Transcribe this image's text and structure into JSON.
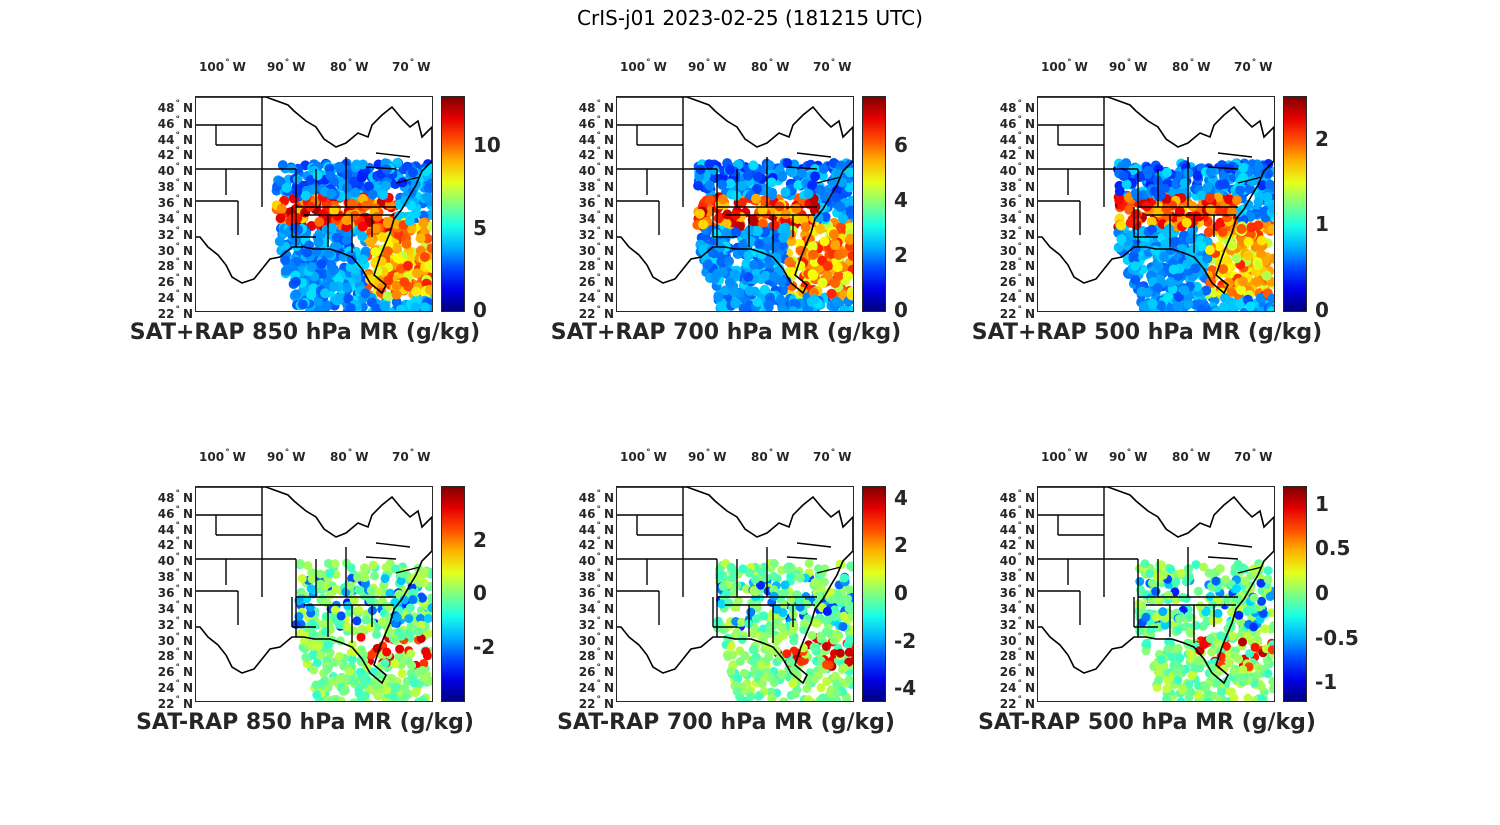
{
  "figure": {
    "title": "CrIS-j01 2023-02-25 (181215 UTC)"
  },
  "lon_labels": [
    "100",
    "W",
    "90",
    "W",
    "80",
    "W",
    "70",
    "W"
  ],
  "lon_ticks": [
    {
      "deg": "100",
      "hemi": "W"
    },
    {
      "deg": "90",
      "hemi": "W"
    },
    {
      "deg": "80",
      "hemi": "W"
    },
    {
      "deg": "70",
      "hemi": "W"
    }
  ],
  "lat_ticks": [
    {
      "deg": "48",
      "hemi": "N"
    },
    {
      "deg": "46",
      "hemi": "N"
    },
    {
      "deg": "44",
      "hemi": "N"
    },
    {
      "deg": "42",
      "hemi": "N"
    },
    {
      "deg": "40",
      "hemi": "N"
    },
    {
      "deg": "38",
      "hemi": "N"
    },
    {
      "deg": "36",
      "hemi": "N"
    },
    {
      "deg": "34",
      "hemi": "N"
    },
    {
      "deg": "32",
      "hemi": "N"
    },
    {
      "deg": "30",
      "hemi": "N"
    },
    {
      "deg": "28",
      "hemi": "N"
    },
    {
      "deg": "26",
      "hemi": "N"
    },
    {
      "deg": "24",
      "hemi": "N"
    },
    {
      "deg": "22",
      "hemi": "N"
    }
  ],
  "colormap": "jet",
  "panels": [
    {
      "id": "sat-rap-850-sum",
      "title": "SAT+RAP 850 hPa MR (g/kg)",
      "cbar": {
        "min": 0,
        "max": 13,
        "ticks": [
          "0",
          "5",
          "10"
        ]
      },
      "row": 0,
      "col": 0,
      "kind": "full"
    },
    {
      "id": "sat-rap-700-sum",
      "title": "SAT+RAP 700 hPa MR (g/kg)",
      "cbar": {
        "min": 0,
        "max": 7.8,
        "ticks": [
          "0",
          "2",
          "4",
          "6"
        ]
      },
      "row": 0,
      "col": 1,
      "kind": "full"
    },
    {
      "id": "sat-rap-500-sum",
      "title": "SAT+RAP 500 hPa MR (g/kg)",
      "cbar": {
        "min": 0,
        "max": 2.5,
        "ticks": [
          "0",
          "1",
          "2"
        ]
      },
      "row": 0,
      "col": 2,
      "kind": "full"
    },
    {
      "id": "sat-rap-850-diff",
      "title": "SAT-RAP 850 hPa MR (g/kg)",
      "cbar": {
        "min": -4,
        "max": 4,
        "ticks": [
          "-2",
          "0",
          "2"
        ]
      },
      "row": 1,
      "col": 0,
      "kind": "diff"
    },
    {
      "id": "sat-rap-700-diff",
      "title": "SAT-RAP 700 hPa MR (g/kg)",
      "cbar": {
        "min": -4.5,
        "max": 4.5,
        "ticks": [
          "-4",
          "-2",
          "0",
          "2",
          "4"
        ]
      },
      "row": 1,
      "col": 1,
      "kind": "diff"
    },
    {
      "id": "sat-rap-500-diff",
      "title": "SAT-RAP 500 hPa MR (g/kg)",
      "cbar": {
        "min": -1.2,
        "max": 1.2,
        "ticks": [
          "-1",
          "-0.5",
          "0",
          "0.5",
          "1"
        ]
      },
      "row": 1,
      "col": 2,
      "kind": "diff"
    }
  ]
}
